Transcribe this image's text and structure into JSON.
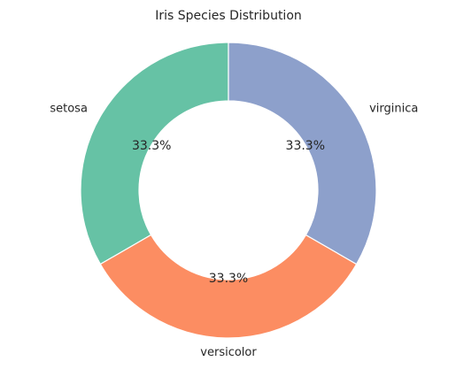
{
  "chart_data": {
    "type": "pie",
    "title": "Iris Species Distribution",
    "categories": [
      "setosa",
      "versicolor",
      "virginica"
    ],
    "values": [
      50,
      50,
      50
    ],
    "percent_labels": [
      "33.3%",
      "33.3%",
      "33.3%"
    ],
    "colors": [
      "#66c2a5",
      "#fc8d62",
      "#8da0cb"
    ],
    "donut": true,
    "start_angle_deg": 90,
    "direction": "counterclockwise"
  }
}
